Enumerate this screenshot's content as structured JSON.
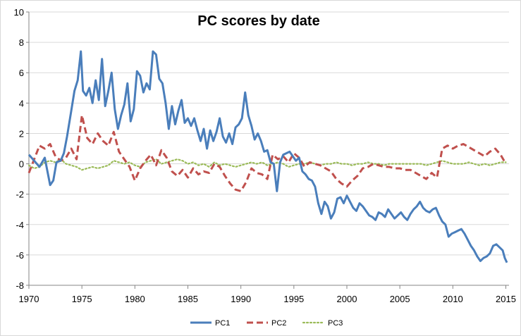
{
  "chart_data": {
    "type": "line",
    "title": "PC scores by date",
    "xlabel": "",
    "ylabel": "",
    "xlim": [
      1970,
      2015.3
    ],
    "ylim": [
      -8,
      10
    ],
    "x_ticks": [
      1970,
      1975,
      1980,
      1985,
      1990,
      1995,
      2000,
      2005,
      2010,
      2015
    ],
    "x_tick_labels": [
      "1970",
      "1975",
      "1980",
      "1985",
      "1990",
      "1995",
      "2000",
      "2005",
      "2010",
      "2015"
    ],
    "y_ticks": [
      -8,
      -6,
      -4,
      -2,
      0,
      2,
      4,
      6,
      8,
      10
    ],
    "y_tick_labels": [
      "-8",
      "-6",
      "-4",
      "-2",
      "0",
      "2",
      "4",
      "6",
      "8",
      "10"
    ],
    "legend_position": "bottom",
    "grid": "horizontal",
    "series": [
      {
        "name": "PC1",
        "color": "#4a7ebb",
        "dash": "solid",
        "x": [
          1970.0,
          1970.5,
          1971.0,
          1971.5,
          1972.0,
          1972.3,
          1972.6,
          1973.0,
          1973.3,
          1973.6,
          1974.0,
          1974.3,
          1974.6,
          1974.9,
          1975.1,
          1975.4,
          1975.7,
          1976.0,
          1976.3,
          1976.6,
          1976.9,
          1977.2,
          1977.5,
          1977.8,
          1978.1,
          1978.4,
          1978.7,
          1979.0,
          1979.3,
          1979.6,
          1979.9,
          1980.2,
          1980.5,
          1980.8,
          1981.1,
          1981.4,
          1981.7,
          1982.0,
          1982.3,
          1982.6,
          1982.9,
          1983.2,
          1983.5,
          1983.8,
          1984.1,
          1984.4,
          1984.7,
          1985.0,
          1985.3,
          1985.6,
          1985.9,
          1986.2,
          1986.5,
          1986.8,
          1987.1,
          1987.4,
          1987.7,
          1988.0,
          1988.3,
          1988.6,
          1988.9,
          1989.2,
          1989.5,
          1989.8,
          1990.1,
          1990.4,
          1990.7,
          1991.0,
          1991.3,
          1991.6,
          1991.9,
          1992.2,
          1992.5,
          1992.8,
          1993.1,
          1993.4,
          1993.7,
          1994.0,
          1994.3,
          1994.6,
          1994.9,
          1995.2,
          1995.5,
          1995.8,
          1996.1,
          1996.4,
          1996.7,
          1997.0,
          1997.3,
          1997.6,
          1997.9,
          1998.2,
          1998.5,
          1998.8,
          1999.1,
          1999.4,
          1999.7,
          2000.0,
          2000.3,
          2000.6,
          2000.9,
          2001.2,
          2001.5,
          2001.8,
          2002.1,
          2002.4,
          2002.7,
          2003.0,
          2003.3,
          2003.6,
          2003.9,
          2004.2,
          2004.5,
          2004.8,
          2005.1,
          2005.4,
          2005.7,
          2006.0,
          2006.3,
          2006.6,
          2006.9,
          2007.2,
          2007.5,
          2007.8,
          2008.1,
          2008.4,
          2008.7,
          2009.0,
          2009.3,
          2009.6,
          2009.9,
          2010.2,
          2010.5,
          2010.8,
          2011.1,
          2011.4,
          2011.7,
          2012.0,
          2012.3,
          2012.6,
          2012.9,
          2013.2,
          2013.5,
          2013.8,
          2014.1,
          2014.4,
          2014.7,
          2014.9,
          2015.1
        ],
        "values": [
          0.6,
          0.2,
          -0.2,
          0.4,
          -1.4,
          -1.1,
          0.1,
          0.2,
          0.7,
          1.8,
          3.5,
          4.8,
          5.5,
          7.4,
          4.8,
          4.5,
          5.0,
          4.0,
          5.5,
          4.2,
          6.9,
          3.8,
          4.8,
          6.0,
          3.6,
          2.3,
          3.2,
          3.9,
          5.3,
          2.8,
          3.6,
          6.1,
          5.8,
          4.7,
          5.3,
          4.9,
          7.4,
          7.2,
          5.6,
          5.3,
          4.0,
          2.3,
          3.8,
          2.6,
          3.5,
          4.2,
          2.7,
          3.0,
          2.5,
          3.0,
          2.2,
          1.5,
          2.3,
          1.0,
          2.2,
          1.5,
          2.1,
          3.0,
          1.8,
          1.4,
          2.0,
          1.3,
          2.4,
          2.6,
          3.0,
          4.7,
          3.2,
          2.5,
          1.6,
          2.0,
          1.5,
          0.8,
          0.9,
          0.1,
          0.0,
          -1.8,
          0.1,
          0.6,
          0.7,
          0.8,
          0.5,
          0.2,
          0.4,
          -0.5,
          -0.7,
          -1.0,
          -1.1,
          -1.5,
          -2.6,
          -3.3,
          -2.5,
          -2.8,
          -3.6,
          -3.2,
          -2.3,
          -2.2,
          -2.6,
          -2.1,
          -2.5,
          -2.9,
          -3.1,
          -2.6,
          -2.8,
          -3.1,
          -3.4,
          -3.5,
          -3.7,
          -3.2,
          -3.3,
          -3.5,
          -3.0,
          -3.3,
          -3.6,
          -3.4,
          -3.2,
          -3.5,
          -3.7,
          -3.3,
          -3.0,
          -2.8,
          -2.5,
          -2.9,
          -3.1,
          -3.2,
          -3.0,
          -2.9,
          -3.4,
          -3.8,
          -4.0,
          -4.8,
          -4.6,
          -4.5,
          -4.4,
          -4.3,
          -4.6,
          -5.0,
          -5.4,
          -5.7,
          -6.1,
          -6.4,
          -6.2,
          -6.1,
          -5.9,
          -5.4,
          -5.3,
          -5.5,
          -5.7,
          -6.2,
          -6.5
        ]
      },
      {
        "name": "PC2",
        "color": "#c0504d",
        "dash": "dashed",
        "x": [
          1970.0,
          1970.5,
          1971.0,
          1971.5,
          1972.0,
          1972.5,
          1973.0,
          1973.5,
          1974.0,
          1974.5,
          1975.0,
          1975.5,
          1976.0,
          1976.5,
          1977.0,
          1977.5,
          1978.0,
          1978.5,
          1979.0,
          1979.5,
          1980.0,
          1980.5,
          1981.0,
          1981.5,
          1982.0,
          1982.5,
          1983.0,
          1983.5,
          1984.0,
          1984.5,
          1985.0,
          1985.5,
          1986.0,
          1986.5,
          1987.0,
          1987.5,
          1988.0,
          1988.5,
          1989.0,
          1989.5,
          1990.0,
          1990.5,
          1991.0,
          1991.5,
          1992.0,
          1992.5,
          1993.0,
          1993.5,
          1994.0,
          1994.5,
          1995.0,
          1995.5,
          1996.0,
          1996.5,
          1997.0,
          1997.5,
          1998.0,
          1998.5,
          1999.0,
          1999.5,
          2000.0,
          2000.5,
          2001.0,
          2001.5,
          2002.0,
          2002.5,
          2003.0,
          2003.5,
          2004.0,
          2004.5,
          2005.0,
          2005.5,
          2006.0,
          2006.5,
          2007.0,
          2007.5,
          2008.0,
          2008.5,
          2009.0,
          2009.5,
          2010.0,
          2010.5,
          2011.0,
          2011.5,
          2012.0,
          2012.5,
          2013.0,
          2013.5,
          2014.0,
          2014.5,
          2015.0
        ],
        "values": [
          -0.6,
          0.3,
          1.2,
          1.0,
          1.3,
          0.5,
          0.2,
          0.4,
          1.0,
          0.3,
          3.2,
          1.7,
          1.3,
          2.0,
          1.5,
          1.2,
          2.1,
          0.8,
          0.3,
          -0.2,
          -1.1,
          -0.3,
          0.2,
          0.6,
          -0.1,
          0.9,
          0.4,
          -0.5,
          -0.8,
          -0.4,
          -0.9,
          -0.3,
          -0.7,
          -0.5,
          -0.6,
          0.0,
          -0.2,
          -0.8,
          -1.3,
          -1.7,
          -1.8,
          -1.2,
          -0.3,
          -0.6,
          -0.7,
          -1.0,
          0.6,
          0.3,
          0.5,
          0.1,
          0.7,
          0.4,
          -0.2,
          0.1,
          0.0,
          -0.1,
          -0.3,
          -0.5,
          -1.0,
          -1.3,
          -1.5,
          -1.1,
          -0.8,
          -0.3,
          -0.2,
          0.0,
          -0.1,
          -0.2,
          -0.2,
          -0.3,
          -0.3,
          -0.4,
          -0.4,
          -0.6,
          -0.8,
          -1.0,
          -0.6,
          -0.9,
          1.0,
          1.2,
          1.0,
          1.2,
          1.3,
          1.1,
          0.9,
          0.7,
          0.5,
          0.8,
          1.0,
          0.6,
          0.0
        ]
      },
      {
        "name": "PC3",
        "color": "#9bbb59",
        "dash": "dotted",
        "x": [
          1970.0,
          1970.5,
          1971.0,
          1971.5,
          1972.0,
          1972.5,
          1973.0,
          1973.5,
          1974.0,
          1974.5,
          1975.0,
          1975.5,
          1976.0,
          1976.5,
          1977.0,
          1977.5,
          1978.0,
          1978.5,
          1979.0,
          1979.5,
          1980.0,
          1980.5,
          1981.0,
          1981.5,
          1982.0,
          1982.5,
          1983.0,
          1983.5,
          1984.0,
          1984.5,
          1985.0,
          1985.5,
          1986.0,
          1986.5,
          1987.0,
          1987.5,
          1988.0,
          1988.5,
          1989.0,
          1989.5,
          1990.0,
          1990.5,
          1991.0,
          1991.5,
          1992.0,
          1992.5,
          1993.0,
          1993.5,
          1994.0,
          1994.5,
          1995.0,
          1995.5,
          1996.0,
          1996.5,
          1997.0,
          1997.5,
          1998.0,
          1998.5,
          1999.0,
          1999.5,
          2000.0,
          2000.5,
          2001.0,
          2001.5,
          2002.0,
          2002.5,
          2003.0,
          2003.5,
          2004.0,
          2004.5,
          2005.0,
          2005.5,
          2006.0,
          2006.5,
          2007.0,
          2007.5,
          2008.0,
          2008.5,
          2009.0,
          2009.5,
          2010.0,
          2010.5,
          2011.0,
          2011.5,
          2012.0,
          2012.5,
          2013.0,
          2013.5,
          2014.0,
          2014.5,
          2015.0
        ],
        "values": [
          -0.1,
          -0.3,
          -0.2,
          0.1,
          0.2,
          0.1,
          0.3,
          0.0,
          -0.1,
          -0.2,
          -0.4,
          -0.3,
          -0.2,
          -0.3,
          -0.2,
          -0.1,
          0.2,
          0.1,
          0.0,
          0.1,
          -0.1,
          -0.2,
          0.1,
          0.2,
          0.3,
          0.0,
          0.1,
          0.2,
          0.3,
          0.2,
          0.0,
          0.1,
          -0.1,
          0.0,
          -0.2,
          0.1,
          -0.1,
          0.0,
          -0.1,
          -0.2,
          -0.1,
          0.0,
          0.1,
          0.0,
          0.1,
          -0.1,
          0.0,
          0.1,
          0.0,
          -0.2,
          -0.1,
          0.0,
          0.0,
          0.1,
          0.0,
          -0.1,
          0.0,
          0.0,
          0.1,
          0.0,
          0.0,
          -0.1,
          0.0,
          0.0,
          0.1,
          0.0,
          0.0,
          -0.1,
          0.0,
          0.0,
          0.0,
          0.0,
          0.0,
          0.0,
          0.0,
          -0.1,
          0.0,
          0.1,
          0.2,
          0.1,
          0.0,
          0.0,
          0.0,
          0.1,
          0.0,
          -0.1,
          0.0,
          -0.1,
          0.0,
          0.1,
          0.1
        ]
      }
    ]
  }
}
